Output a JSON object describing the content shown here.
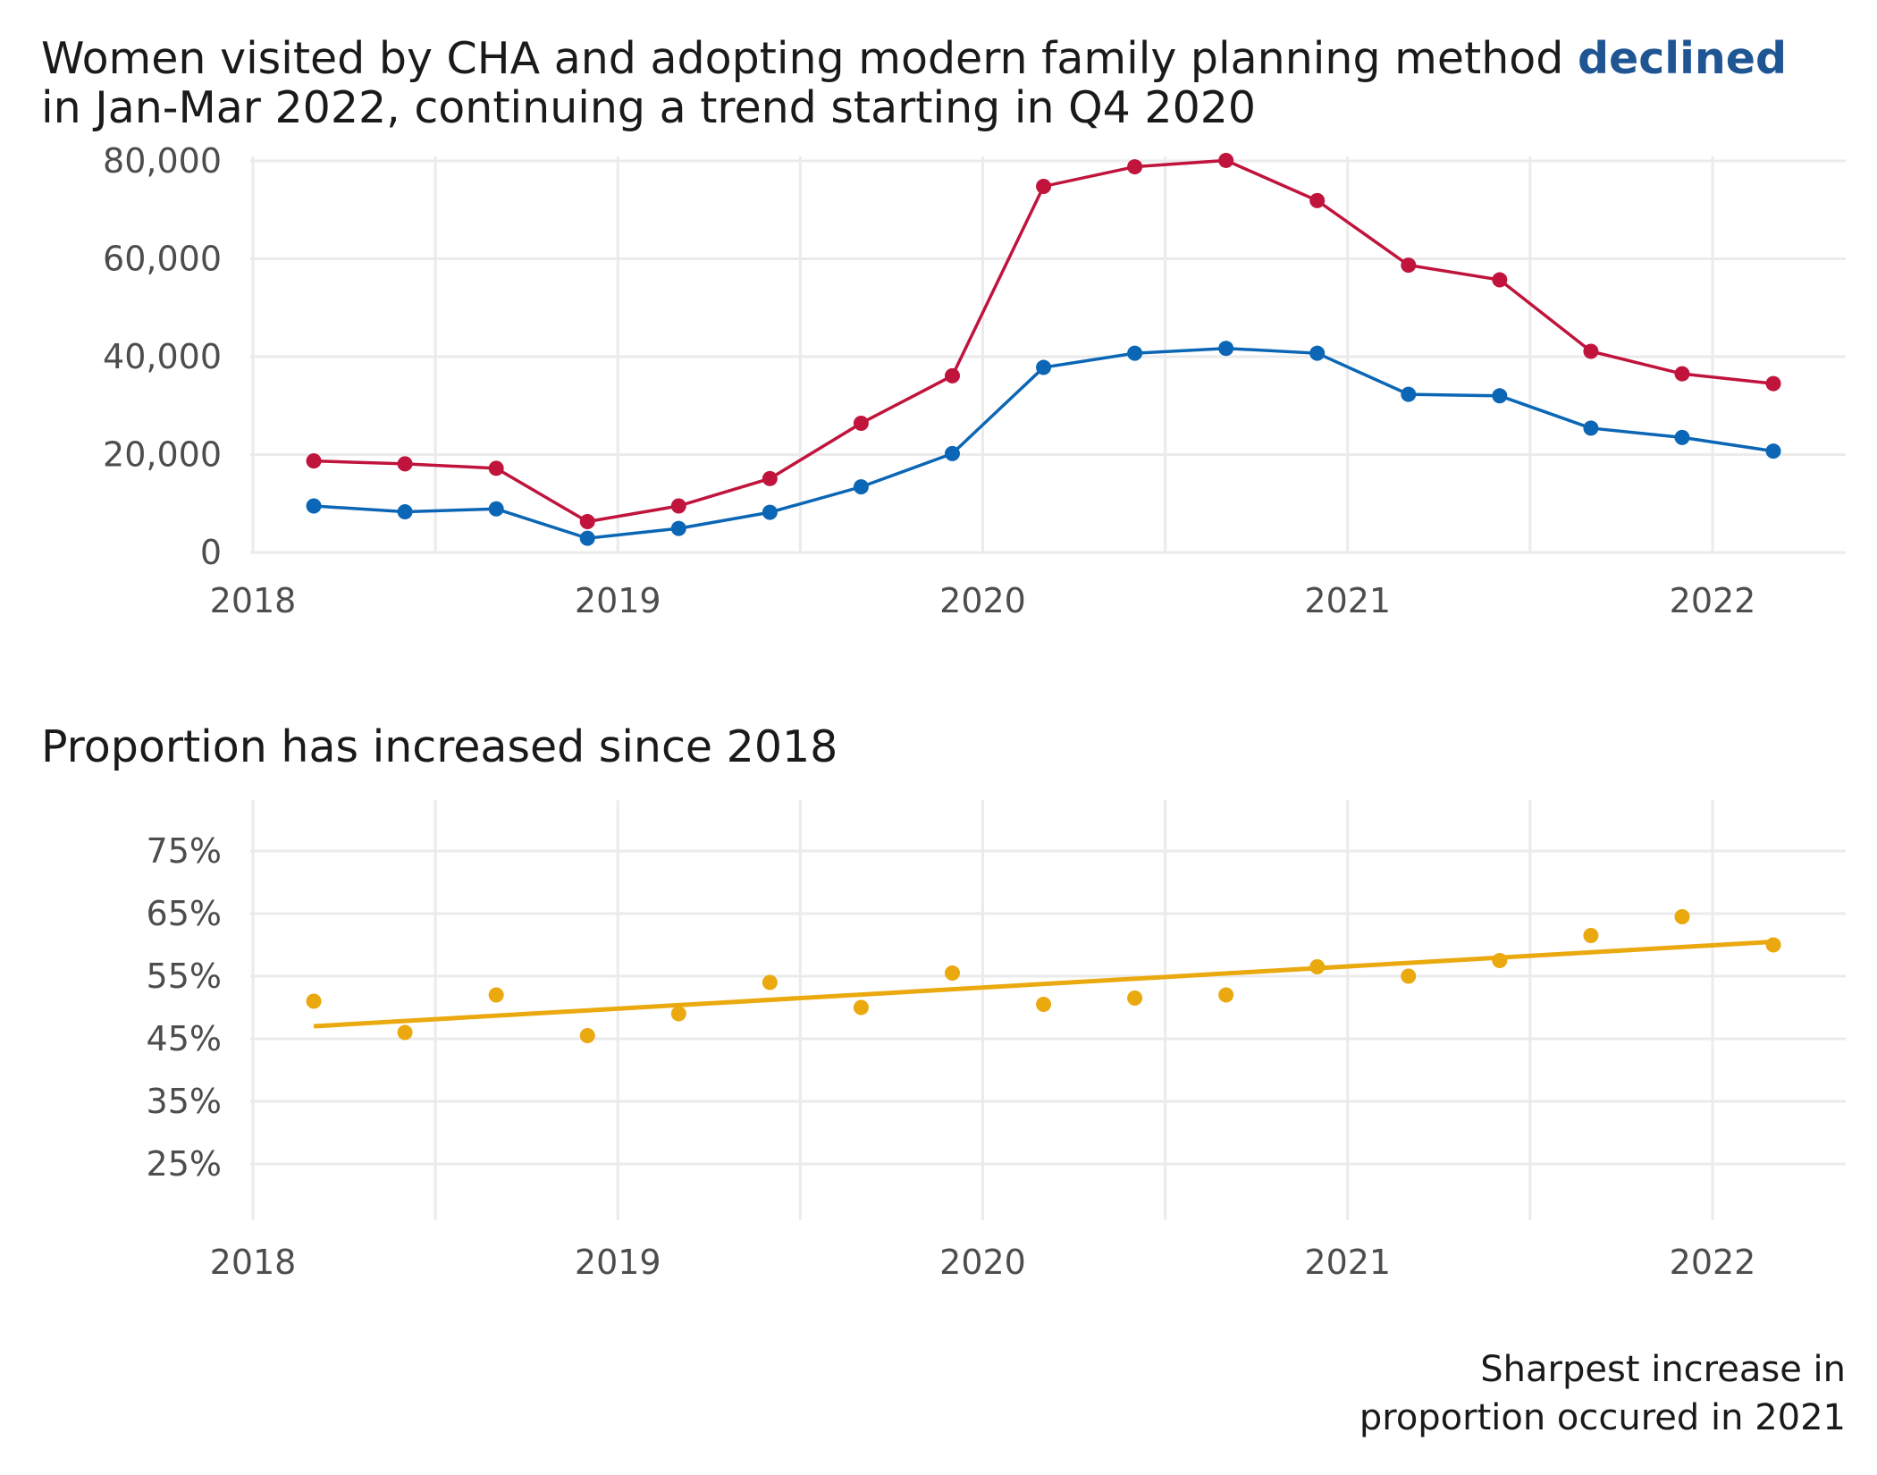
{
  "title": {
    "part1": "Women visited by CHA and adopting modern family planning method ",
    "highlight": "declined",
    "part2": "in Jan-Mar 2022, continuing a trend starting in Q4 2020",
    "highlight_color": "#1f5592"
  },
  "subtitle": "Proportion has increased since 2018",
  "caption": {
    "line1": "Sharpest increase in",
    "line2": "proportion occured in 2021"
  },
  "colors": {
    "visited": "#c0143c",
    "adopting": "#0b66b5",
    "proportion": "#eaa90f",
    "grid": "#ebebeb"
  },
  "chart_data": [
    {
      "type": "line",
      "x": [
        "2018-03-01",
        "2018-06-01",
        "2018-09-01",
        "2018-12-01",
        "2019-03-01",
        "2019-06-01",
        "2019-09-01",
        "2019-12-01",
        "2020-03-01",
        "2020-06-01",
        "2020-09-01",
        "2020-12-01",
        "2021-03-01",
        "2021-06-01",
        "2021-09-01",
        "2021-12-01",
        "2022-03-01"
      ],
      "series": [
        {
          "values": [
            18700,
            18100,
            17200,
            6300,
            9500,
            15100,
            26400,
            36100,
            74800,
            78800,
            80100,
            71900,
            58700,
            55700,
            41100,
            36500,
            34500
          ]
        },
        {
          "values": [
            9500,
            8300,
            8900,
            2900,
            4900,
            8200,
            13400,
            20200,
            37800,
            40700,
            41700,
            40700,
            32300,
            32000,
            25400,
            23500,
            20700
          ]
        }
      ],
      "yticks": [
        0,
        20000,
        40000,
        60000,
        80000
      ],
      "ytick_labels": [
        "0",
        "20,000",
        "40,000",
        "60,000",
        "80,000"
      ],
      "xtick_labels": [
        "2018",
        "2019",
        "2020",
        "2021",
        "2022"
      ],
      "ylim": [
        0,
        80000
      ],
      "grid": true
    },
    {
      "type": "scatter",
      "x": [
        "2018-03-01",
        "2018-06-01",
        "2018-09-01",
        "2018-12-01",
        "2019-03-01",
        "2019-06-01",
        "2019-09-01",
        "2019-12-01",
        "2020-03-01",
        "2020-06-01",
        "2020-09-01",
        "2020-12-01",
        "2021-03-01",
        "2021-06-01",
        "2021-09-01",
        "2021-12-01",
        "2022-03-01"
      ],
      "series": [
        {
          "values": [
            51,
            46,
            52,
            45.5,
            49,
            54,
            50,
            55.5,
            50.5,
            51.5,
            52,
            56.5,
            55,
            57.5,
            61.5,
            64.5,
            60
          ]
        }
      ],
      "trend_line": {
        "from": [
          "2018-03-01",
          47
        ],
        "to": [
          "2022-03-01",
          60.5
        ]
      },
      "yticks": [
        25,
        35,
        45,
        55,
        65,
        75
      ],
      "ytick_labels": [
        "25%",
        "35%",
        "45%",
        "55%",
        "65%",
        "75%"
      ],
      "xtick_labels": [
        "2018",
        "2019",
        "2020",
        "2021",
        "2022"
      ],
      "ylim": [
        25,
        75
      ],
      "grid": true
    }
  ]
}
